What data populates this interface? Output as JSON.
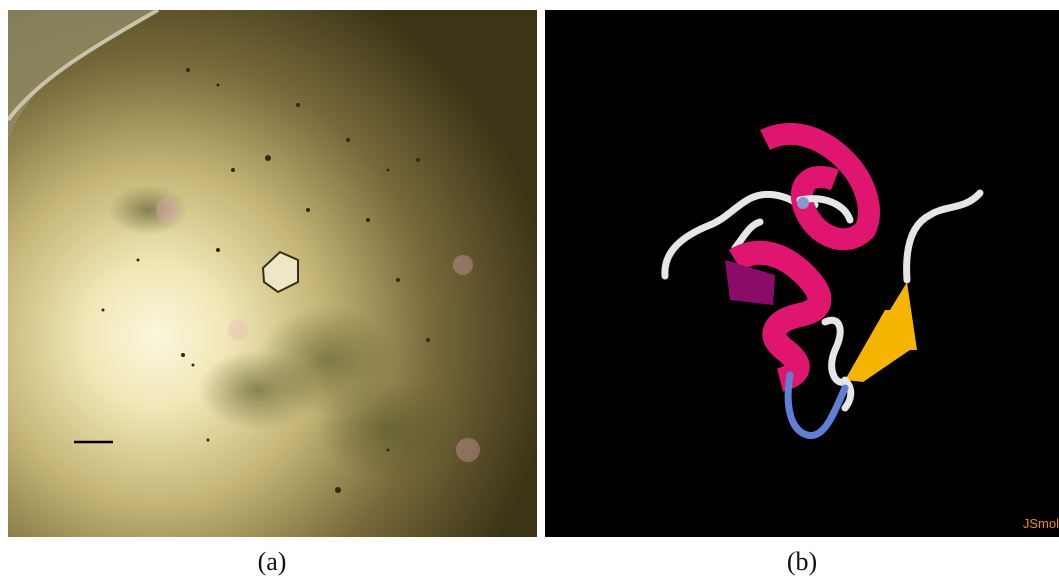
{
  "figure": {
    "panel_a": {
      "caption": "(a)"
    },
    "panel_b": {
      "caption": "(b)",
      "watermark": "JSmol"
    }
  },
  "colors": {
    "helix": "#e0156f",
    "helix_dark": "#8a0c68",
    "strand": "#f5b400",
    "loop_blue": "#5f7fd6",
    "coil": "#e6e6e6",
    "background_b": "#000000"
  }
}
